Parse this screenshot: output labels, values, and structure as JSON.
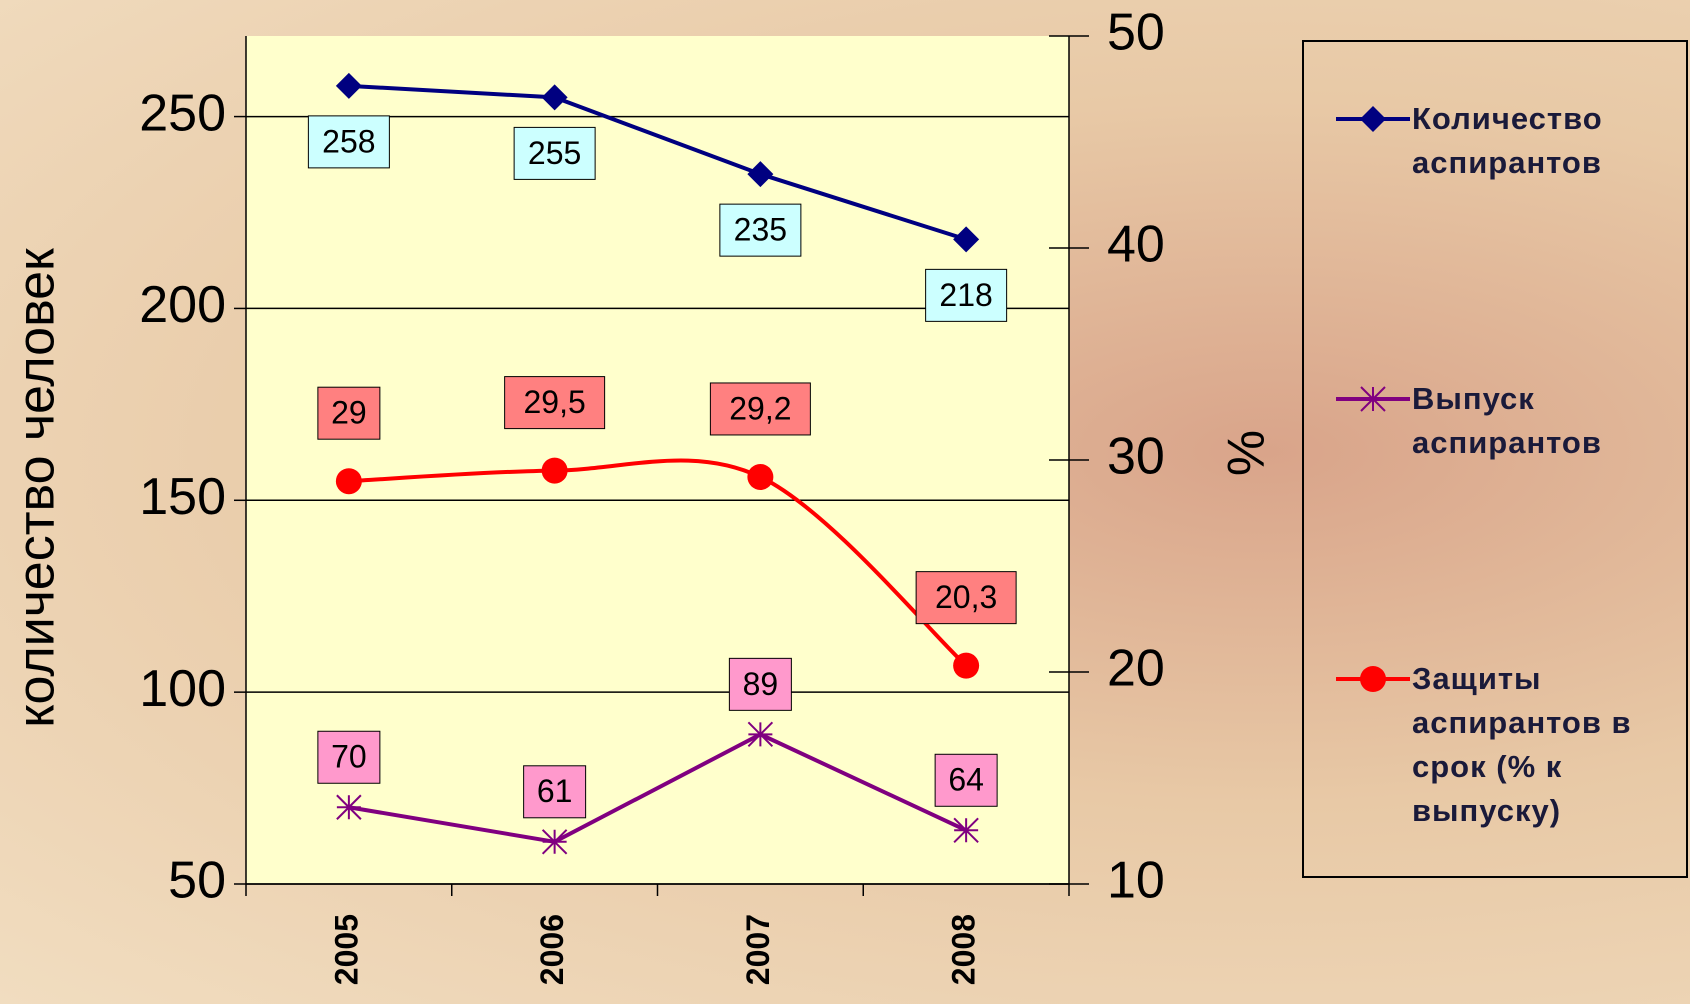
{
  "chart_data": {
    "type": "line",
    "categories": [
      "2005",
      "2006",
      "2007",
      "2008"
    ],
    "y_label": "количество человек",
    "y2_label": "%",
    "ylim": [
      50,
      271
    ],
    "yticks": [
      50,
      100,
      150,
      200,
      250
    ],
    "y2lim": [
      10,
      50
    ],
    "y2ticks": [
      10,
      20,
      30,
      40,
      50
    ],
    "grid": true,
    "legend": "right",
    "series": [
      {
        "name": "Количество аспирантов",
        "color": "#000080",
        "marker": "diamond",
        "label_color": "#ccffff",
        "values": [
          258,
          255,
          235,
          218
        ]
      },
      {
        "name": "Выпуск аспирантов",
        "color": "#800080",
        "marker": "star",
        "label_color": "#ff99cc",
        "values": [
          70,
          61,
          89,
          64
        ]
      },
      {
        "name": "Защиты аспирантов в срок (% к выпуску)",
        "color": "#ff0000",
        "marker": "circle",
        "label_color": "#ff8080",
        "axis": "y2",
        "smooth": true,
        "values": [
          29,
          29.5,
          29.2,
          20.3
        ],
        "value_labels": [
          "29",
          "29,5",
          "29,2",
          "20,3"
        ]
      }
    ]
  }
}
